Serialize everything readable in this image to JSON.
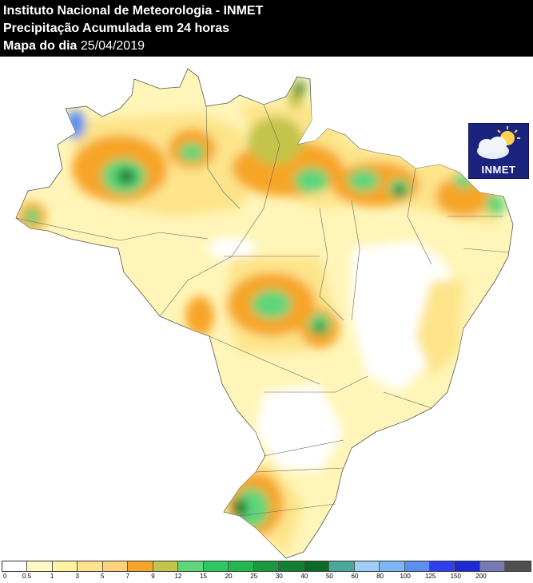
{
  "header": {
    "line1": "Instituto Nacional de Meteorologia - INMET",
    "line2": "Precipitação Acumulada em 24 horas",
    "line3_label": "Mapa do dia",
    "line3_date": "25/04/2019"
  },
  "logo": {
    "text": "INMET",
    "icon": "sun-cloud-icon"
  },
  "legend": {
    "colors": [
      "#ffffff",
      "#fff9c4",
      "#fff2a0",
      "#fde48a",
      "#fdd27a",
      "#f7a526",
      "#c3c44a",
      "#5fd67a",
      "#2ec861",
      "#21b84f",
      "#1a9a3d",
      "#128032",
      "#0b6a26",
      "#4aa89a",
      "#9ed0f7",
      "#7bb6f5",
      "#5a8ff0",
      "#2f3ff0",
      "#1d28d6",
      "#7878b8",
      "#505050"
    ],
    "labels": [
      "0",
      "0.5",
      "1",
      "3",
      "5",
      "7",
      "9",
      "12",
      "15",
      "20",
      "25",
      "30",
      "40",
      "50",
      "60",
      "80",
      "100",
      "125",
      "150",
      "200"
    ]
  }
}
